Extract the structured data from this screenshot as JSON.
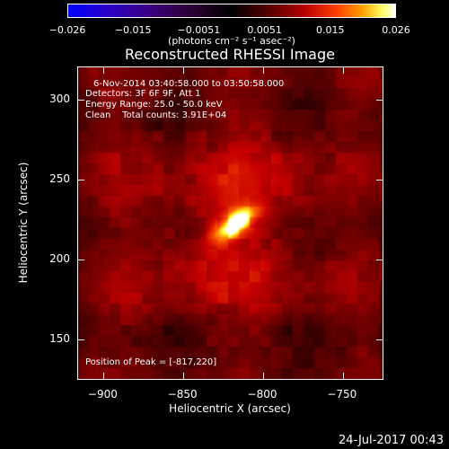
{
  "colorbar": {
    "ticks": [
      "−0.026",
      "−0.015",
      "−0.0051",
      "0.0051",
      "0.015",
      "0.026"
    ],
    "units": "(photons cm⁻² s⁻¹ asec⁻²)"
  },
  "title": "Reconstructed RHESSI Image",
  "info": {
    "time": "6-Nov-2014 03:40:58.000 to 03:50:58.000",
    "detectors": "Detectors: 3F 6F 9F, Att 1",
    "energy": "Energy Range: 25.0 - 50.0 keV",
    "clean": "Clean    Total counts: 3.91E+04",
    "peak": "Position of Peak = [-817,220]"
  },
  "timestamp": "24-Jul-2017 00:43",
  "chart_data": {
    "type": "heatmap",
    "title": "Reconstructed RHESSI Image",
    "xlabel": "Heliocentric X (arcsec)",
    "ylabel": "Heliocentric Y (arcsec)",
    "xlim": [
      -916,
      -724
    ],
    "ylim": [
      124,
      320
    ],
    "x_ticks": [
      -900,
      -850,
      -800,
      -750
    ],
    "x_tick_labels": [
      "−900",
      "−850",
      "−800",
      "−750"
    ],
    "y_ticks": [
      150,
      200,
      250,
      300
    ],
    "y_tick_labels": [
      "150",
      "200",
      "250",
      "300"
    ],
    "peak": [
      -817,
      220
    ],
    "color_range": [
      -0.026,
      0.026
    ],
    "colormap": "red-temperature",
    "source": {
      "center": [
        -818,
        221
      ],
      "sigma_major": 12,
      "sigma_minor": 5,
      "angle_deg": 35
    }
  }
}
